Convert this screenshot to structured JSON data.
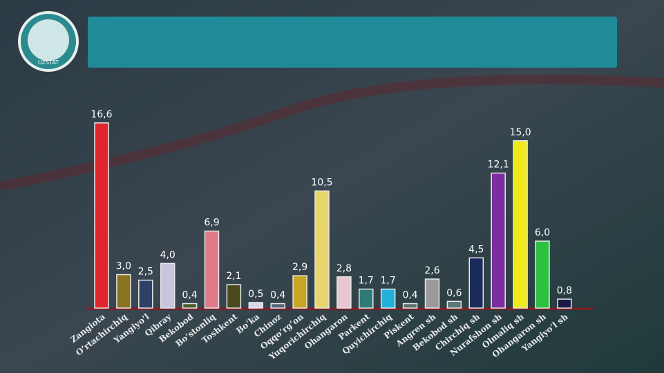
{
  "logo": {
    "label": "UZSTAT"
  },
  "chart_data": {
    "type": "bar",
    "categories": [
      "Zangiota",
      "O’rtachirchiq",
      "Yangiyo’l",
      "Qibray",
      "Bekobod",
      "Bo’stonliq",
      "Toshkent",
      "Bo’ka",
      "Chinoz",
      "Oqqo’rg’on",
      "Yuqorichirchiq",
      "Ohangaron",
      "Parkent",
      "Quyichirchiq",
      "Piskent",
      "Angren sh",
      "Bekobod sh",
      "Chirchiq sh",
      "Nurafshon sh",
      "Olmaliq sh",
      "Ohangaron sh",
      "Yangiyo’l sh"
    ],
    "values": [
      16.6,
      3.0,
      2.5,
      4.0,
      0.4,
      6.9,
      2.1,
      0.5,
      0.4,
      2.9,
      10.5,
      2.8,
      1.7,
      1.7,
      0.4,
      2.6,
      0.6,
      4.5,
      12.1,
      15.0,
      6.0,
      0.8
    ],
    "value_labels": [
      "16,6",
      "3,0",
      "2,5",
      "4,0",
      "0,4",
      "6,9",
      "2,1",
      "0,5",
      "0,4",
      "2,9",
      "10,5",
      "2,8",
      "1,7",
      "1,7",
      "0,4",
      "2,6",
      "0,6",
      "4,5",
      "12,1",
      "15,0",
      "6,0",
      "0,8"
    ],
    "colors": [
      "#e0252e",
      "#8a7420",
      "#2f4068",
      "#c8c4dc",
      "#4d5a22",
      "#e07a88",
      "#4a4a1e",
      "#d8d6e8",
      "#5a6478",
      "#c9a526",
      "#e6d46c",
      "#e8c8d0",
      "#2e7a78",
      "#22b0d8",
      "#5e7268",
      "#9a9a9a",
      "#5a7a78",
      "#1a2a5a",
      "#7a2ea0",
      "#eeea1c",
      "#2ec040",
      "#1c1a48"
    ]
  }
}
